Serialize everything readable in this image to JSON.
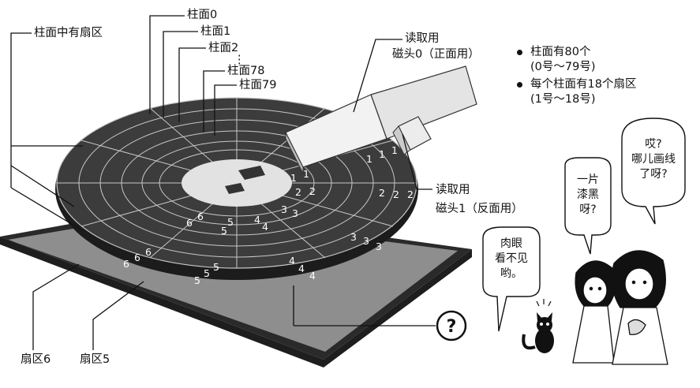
{
  "labels": {
    "cyl_has_sectors": "柱面中有扇区",
    "cyl0": "柱面0",
    "cyl1": "柱面1",
    "cyl2": "柱面2",
    "dots": "⋮",
    "cyl78": "柱面78",
    "cyl79": "柱面79",
    "head0_line1": "读取用",
    "head0_line2": "磁头0（正面用）",
    "head1_line1": "读取用",
    "head1_line2": "磁头1（反面用）",
    "sector6": "扇区6",
    "sector5": "扇区5",
    "question_mark_circle": "?"
  },
  "bullets": [
    {
      "line1": "柱面有80个",
      "line2": "(0号～79号)"
    },
    {
      "line1": "每个柱面有18个扇区",
      "line2": "(1号～18号)"
    }
  ],
  "bubbles": {
    "eyes": [
      "肉眼",
      "看不见",
      "哟。"
    ],
    "dark": [
      "一片",
      "漆黑",
      "呀?"
    ],
    "lines": [
      "哎?",
      "哪儿画线",
      "了呀?"
    ]
  },
  "sector_numbers": {
    "s1": "1",
    "s2": "2",
    "s3": "3",
    "s4": "4",
    "s5": "5",
    "s6": "6"
  },
  "icons": [
    "read-arm",
    "floppy-disk",
    "black-cat",
    "two-girls",
    "question-circle"
  ]
}
